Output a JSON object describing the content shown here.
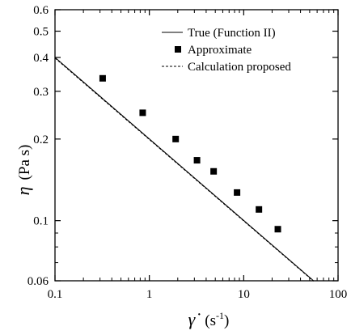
{
  "chart_data": {
    "type": "scatter",
    "xlabel": "γ̇ (s⁻¹)",
    "ylabel": "η (Pa s)",
    "xscale": "log",
    "yscale": "log",
    "xlim": [
      0.1,
      100
    ],
    "ylim": [
      0.06,
      0.6
    ],
    "grid": false,
    "legend_position": "top-right",
    "x_ticks": [
      {
        "value": 0.1,
        "label": "0.1"
      },
      {
        "value": 1,
        "label": "1"
      },
      {
        "value": 10,
        "label": "10"
      },
      {
        "value": 100,
        "label": "100"
      }
    ],
    "y_ticks": [
      {
        "value": 0.06,
        "label": "0.06"
      },
      {
        "value": 0.1,
        "label": "0.1"
      },
      {
        "value": 0.2,
        "label": "0.2"
      },
      {
        "value": 0.3,
        "label": "0.3"
      },
      {
        "value": 0.4,
        "label": "0.4"
      },
      {
        "value": 0.5,
        "label": "0.5"
      },
      {
        "value": 0.6,
        "label": "0.6"
      }
    ],
    "series": [
      {
        "name": "True (Function II)",
        "style": "solid-line",
        "x": [
          0.1,
          55
        ],
        "y": [
          0.4,
          0.06
        ]
      },
      {
        "name": "Approximate",
        "style": "square-marker",
        "x": [
          0.32,
          0.85,
          1.9,
          3.2,
          4.8,
          8.5,
          14.5,
          23
        ],
        "y": [
          0.335,
          0.25,
          0.2,
          0.167,
          0.152,
          0.127,
          0.11,
          0.093
        ]
      },
      {
        "name": "Calculation proposed",
        "style": "dashed-line",
        "x": [
          0.1,
          55
        ],
        "y": [
          0.398,
          0.0598
        ]
      }
    ]
  }
}
